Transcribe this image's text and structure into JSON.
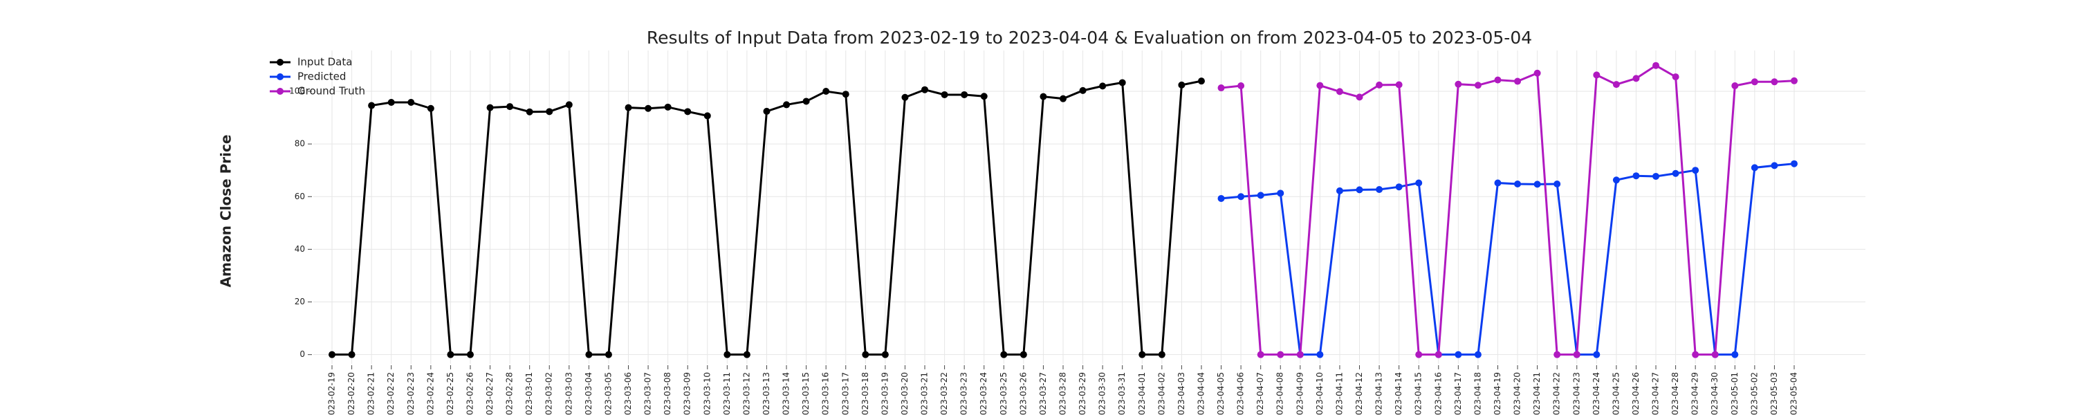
{
  "chart_data": {
    "type": "line",
    "title": "Results of Input Data from 2023-02-19 to 2023-04-04 & Evaluation on from 2023-04-05 to 2023-05-04",
    "y_label": "Amazon Close Price",
    "categories": [
      "2023-02-19",
      "2023-02-20",
      "2023-02-21",
      "2023-02-22",
      "2023-02-23",
      "2023-02-24",
      "2023-02-25",
      "2023-02-26",
      "2023-02-27",
      "2023-02-28",
      "2023-03-01",
      "2023-03-02",
      "2023-03-03",
      "2023-03-04",
      "2023-03-05",
      "2023-03-06",
      "2023-03-07",
      "2023-03-08",
      "2023-03-09",
      "2023-03-10",
      "2023-03-11",
      "2023-03-12",
      "2023-03-13",
      "2023-03-14",
      "2023-03-15",
      "2023-03-16",
      "2023-03-17",
      "2023-03-18",
      "2023-03-19",
      "2023-03-20",
      "2023-03-21",
      "2023-03-22",
      "2023-03-23",
      "2023-03-24",
      "2023-03-25",
      "2023-03-26",
      "2023-03-27",
      "2023-03-28",
      "2023-03-29",
      "2023-03-30",
      "2023-03-31",
      "2023-04-01",
      "2023-04-02",
      "2023-04-03",
      "2023-04-04",
      "2023-04-05",
      "2023-04-06",
      "2023-04-07",
      "2023-04-08",
      "2023-04-09",
      "2023-04-10",
      "2023-04-11",
      "2023-04-12",
      "2023-04-13",
      "2023-04-14",
      "2023-04-15",
      "2023-04-16",
      "2023-04-17",
      "2023-04-18",
      "2023-04-19",
      "2023-04-20",
      "2023-04-21",
      "2023-04-22",
      "2023-04-23",
      "2023-04-24",
      "2023-04-25",
      "2023-04-26",
      "2023-04-27",
      "2023-04-28",
      "2023-04-29",
      "2023-04-30",
      "2023-05-01",
      "2023-05-02",
      "2023-05-03",
      "2023-05-04"
    ],
    "series": [
      {
        "name": "Input Data",
        "color": "#000000",
        "values": [
          0,
          0,
          94.6,
          95.8,
          95.8,
          93.5,
          0,
          0,
          93.8,
          94.2,
          92.2,
          92.3,
          94.9,
          0,
          0,
          93.8,
          93.5,
          94.0,
          92.3,
          90.7,
          0,
          0,
          92.4,
          94.9,
          96.2,
          100.0,
          98.9,
          0,
          0,
          97.7,
          100.6,
          98.7,
          98.7,
          98.1,
          0,
          0,
          98.0,
          97.2,
          100.3,
          102.0,
          103.3,
          0,
          0,
          102.4,
          103.9,
          null,
          null,
          null,
          null,
          null,
          null,
          null,
          null,
          null,
          null,
          null,
          null,
          null,
          null,
          null,
          null,
          null,
          null,
          null,
          null,
          null,
          null,
          null,
          null,
          null,
          null,
          null,
          null,
          null,
          null
        ]
      },
      {
        "name": "Predicted",
        "color": "#0a3cf0",
        "values": [
          null,
          null,
          null,
          null,
          null,
          null,
          null,
          null,
          null,
          null,
          null,
          null,
          null,
          null,
          null,
          null,
          null,
          null,
          null,
          null,
          null,
          null,
          null,
          null,
          null,
          null,
          null,
          null,
          null,
          null,
          null,
          null,
          null,
          null,
          null,
          null,
          null,
          null,
          null,
          null,
          null,
          null,
          null,
          null,
          null,
          59.3,
          60.0,
          60.5,
          61.3,
          0,
          0,
          62.2,
          62.6,
          62.7,
          63.7,
          65.2,
          0,
          0,
          0,
          65.2,
          64.8,
          64.7,
          64.8,
          0,
          0,
          66.3,
          67.9,
          67.7,
          68.8,
          70.0,
          0,
          0,
          71.0,
          71.8,
          72.5
        ]
      },
      {
        "name": "Ground Truth",
        "color": "#b019c0",
        "values": [
          null,
          null,
          null,
          null,
          null,
          null,
          null,
          null,
          null,
          null,
          null,
          null,
          null,
          null,
          null,
          null,
          null,
          null,
          null,
          null,
          null,
          null,
          null,
          null,
          null,
          null,
          null,
          null,
          null,
          null,
          null,
          null,
          null,
          null,
          null,
          null,
          null,
          null,
          null,
          null,
          null,
          null,
          null,
          null,
          null,
          101.3,
          102.1,
          0,
          0,
          0,
          102.2,
          99.9,
          97.8,
          102.4,
          102.5,
          0,
          0,
          102.7,
          102.3,
          104.3,
          103.8,
          106.9,
          0,
          0,
          106.2,
          102.6,
          104.9,
          109.8,
          105.5,
          0,
          0,
          102.1,
          103.6,
          103.6,
          104.0
        ]
      }
    ],
    "ylim": [
      -3.5,
      115.5
    ],
    "yticks": [
      0,
      20,
      40,
      60,
      80,
      100
    ],
    "grid": true,
    "legend": "upper left"
  }
}
